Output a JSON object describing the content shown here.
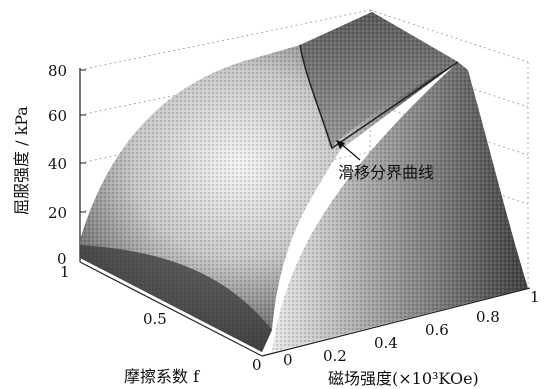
{
  "chart_data": {
    "type": "surface3d",
    "zlabel": "屈服强度 / kPa",
    "xlabel": "磁场强度(×10³KOe)",
    "ylabel": "摩擦系数 f",
    "annotation": "滑移分界曲线",
    "z_ticks": [
      "0",
      "20",
      "40",
      "60",
      "80"
    ],
    "x_ticks": [
      "0",
      "0.2",
      "0.4",
      "0.6",
      "0.8",
      "1"
    ],
    "y_ticks": [
      "0",
      "0.5",
      "1"
    ],
    "zlim": [
      0,
      80
    ],
    "xlim": [
      0,
      1
    ],
    "ylim": [
      0,
      1
    ],
    "grid": true,
    "surface_description": "Yield strength rises with magnetic field strength and friction coefficient; a slip boundary curve divides the surface into a rising region and a flat plateau near 80 kPa.",
    "series": [
      {
        "name": "滑移分界曲线",
        "x": [
          0.2,
          0.4,
          0.6,
          0.8,
          1.0
        ],
        "f": [
          1.0,
          0.75,
          0.55,
          0.4,
          0.3
        ],
        "z": [
          80,
          80,
          80,
          80,
          80
        ]
      }
    ]
  }
}
